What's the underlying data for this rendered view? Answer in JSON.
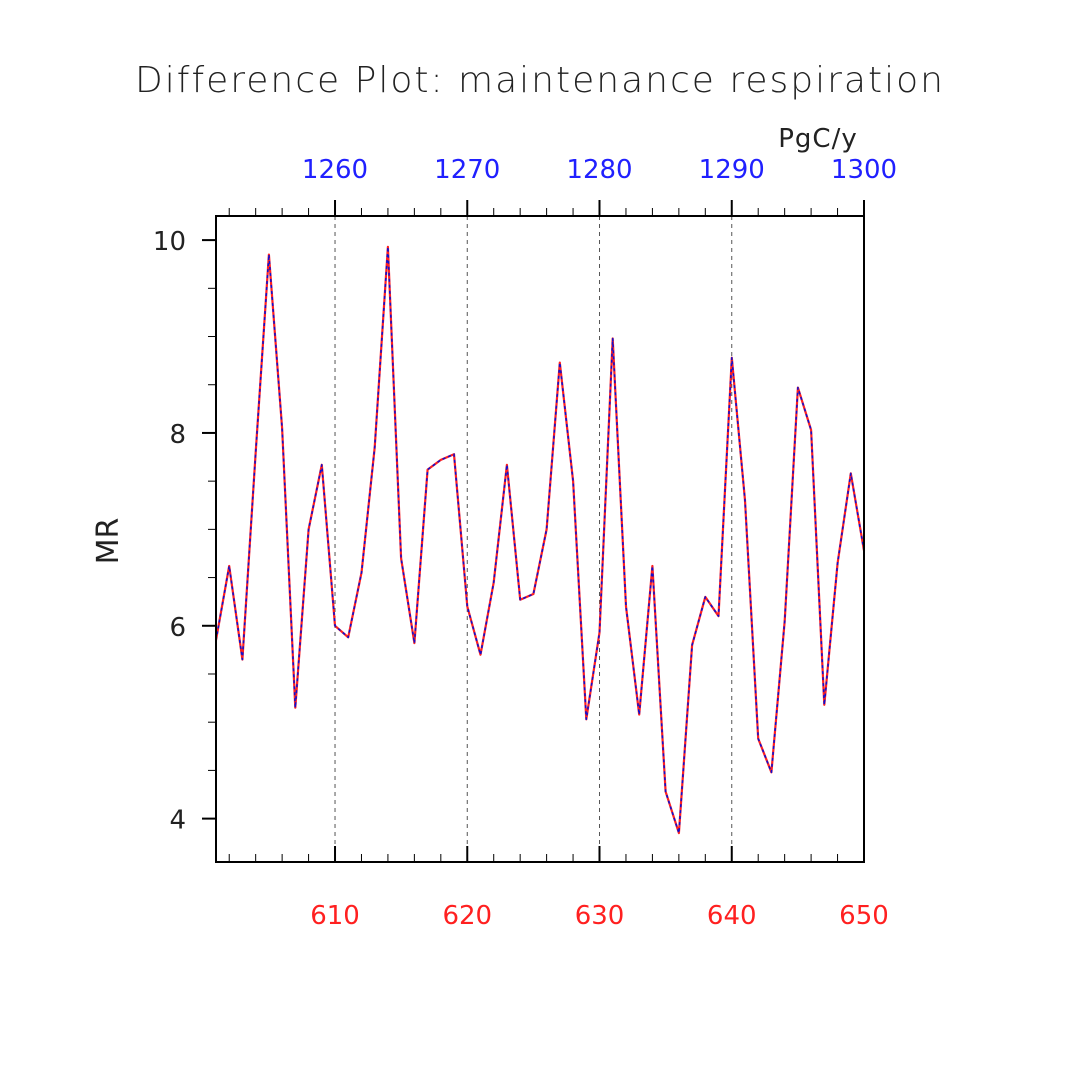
{
  "colors": {
    "series_red": "#ff2020",
    "series_blue": "#1010d0",
    "bottom_axis": "#ff2020",
    "top_axis": "#2020ff",
    "frame": "#000000",
    "grid": "#555555"
  },
  "chart_data": {
    "type": "line",
    "title": "Difference Plot: maintenance respiration",
    "units": "PgC/y",
    "ylabel": "MR",
    "xlabel": "",
    "ylim": [
      3.55,
      10.25
    ],
    "xlim": [
      601,
      650
    ],
    "x2lim": [
      1251,
      1300
    ],
    "y_ticks": [
      4,
      6,
      8,
      10
    ],
    "y_tick_labels": [
      "4",
      "6",
      "8",
      "10"
    ],
    "y_minor_ticks": [
      4.5,
      5,
      5.5,
      6.5,
      7,
      7.5,
      8.5,
      9,
      9.5
    ],
    "x_ticks": [
      610,
      620,
      630,
      640,
      650
    ],
    "x_tick_labels": [
      "610",
      "620",
      "630",
      "640",
      "650"
    ],
    "x2_ticks": [
      1260,
      1270,
      1280,
      1290,
      1300
    ],
    "x2_tick_labels": [
      "1260",
      "1270",
      "1280",
      "1290",
      "1300"
    ],
    "grid": "vertical dashed at major x ticks",
    "x": [
      601,
      602,
      603,
      604,
      605,
      606,
      607,
      608,
      609,
      610,
      611,
      612,
      613,
      614,
      615,
      616,
      617,
      618,
      619,
      620,
      621,
      622,
      623,
      624,
      625,
      626,
      627,
      628,
      629,
      630,
      631,
      632,
      633,
      634,
      635,
      636,
      637,
      638,
      639,
      640,
      641,
      642,
      643,
      644,
      645,
      646,
      647,
      648,
      649,
      650
    ],
    "series": [
      {
        "values": [
          5.85,
          6.62,
          5.65,
          7.8,
          9.85,
          8.05,
          5.15,
          7.0,
          7.67,
          6.0,
          5.88,
          6.55,
          7.85,
          9.93,
          6.7,
          5.82,
          7.62,
          7.72,
          7.78,
          6.2,
          5.7,
          6.45,
          7.67,
          6.27,
          6.33,
          7.0,
          8.73,
          7.5,
          5.03,
          5.93,
          8.98,
          6.2,
          5.08,
          6.62,
          4.28,
          3.85,
          5.8,
          6.3,
          6.1,
          8.78,
          7.3,
          4.83,
          4.48,
          6.05,
          8.47,
          8.03,
          5.18,
          6.65,
          7.58,
          6.78
        ]
      }
    ]
  }
}
